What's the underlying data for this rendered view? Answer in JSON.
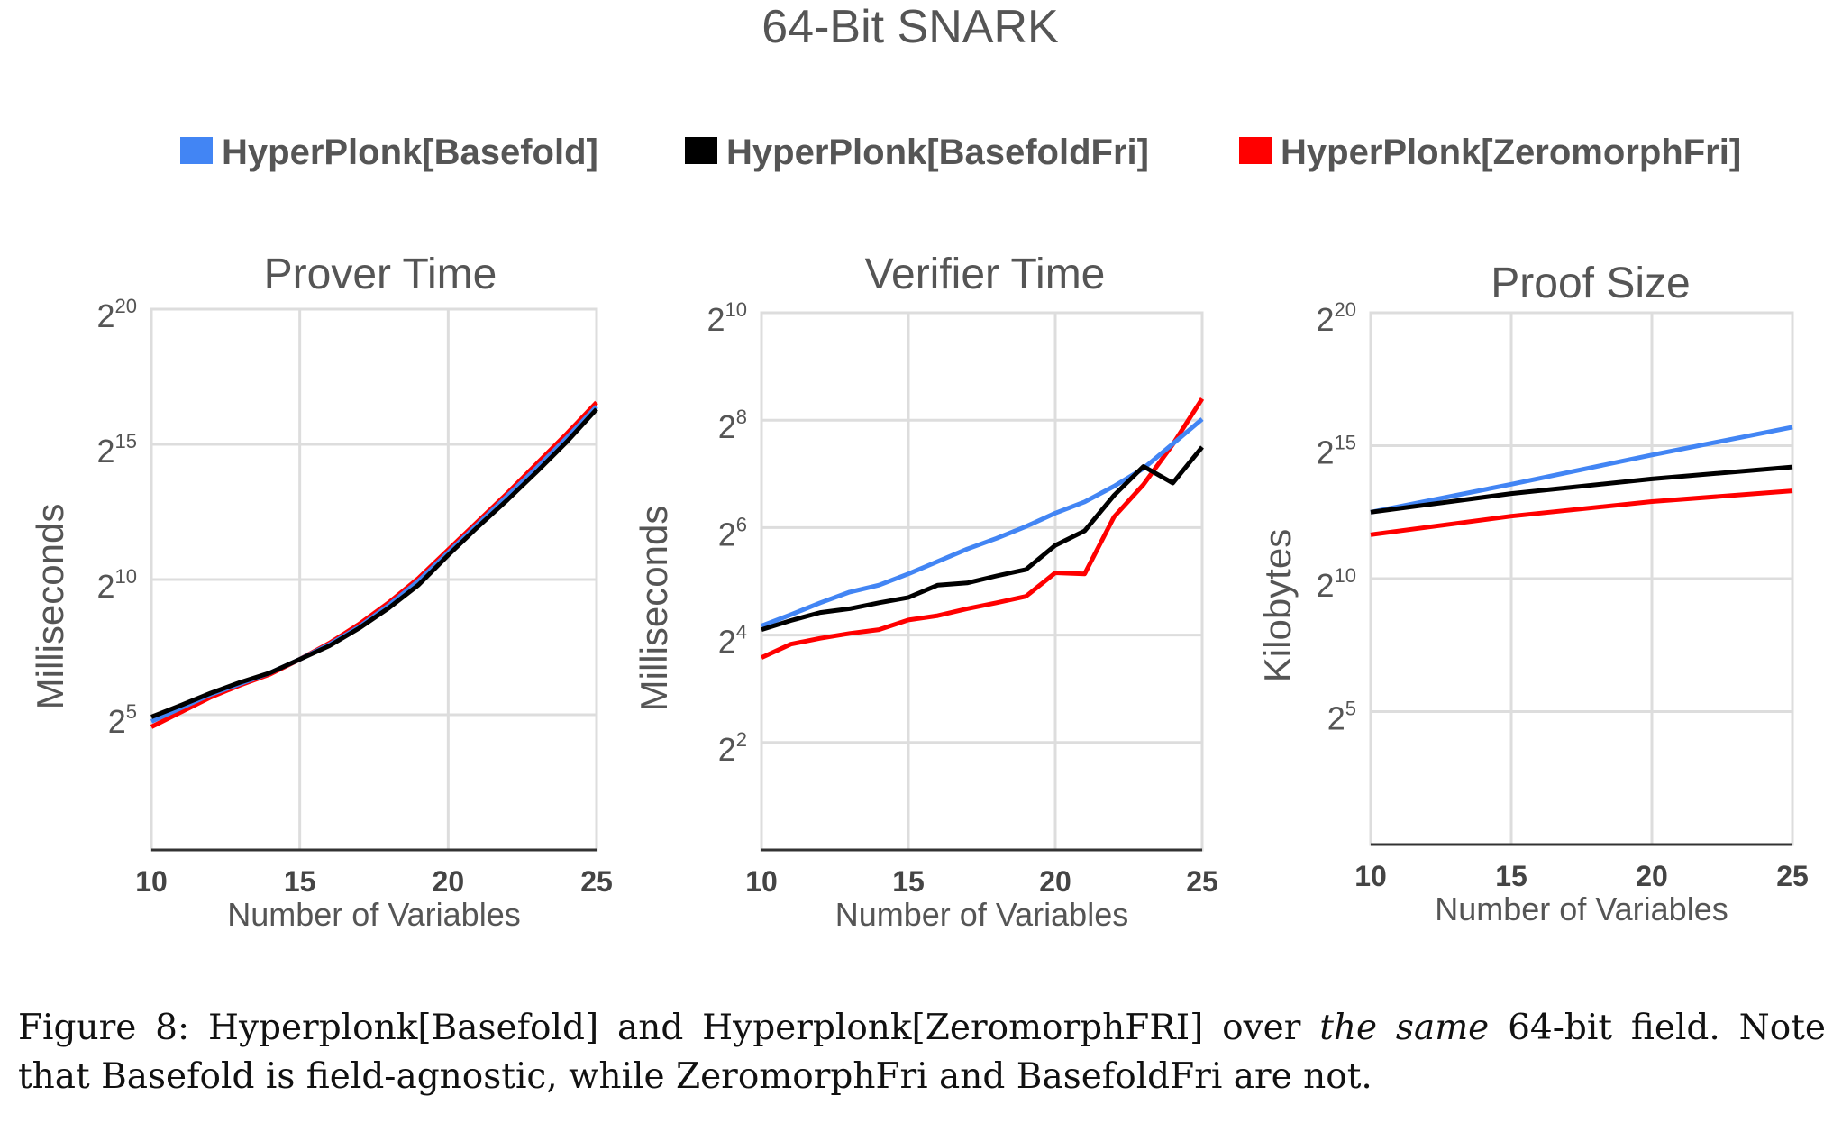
{
  "figure_title": "64-Bit SNARK",
  "legend": [
    {
      "label": "HyperPlonk[Basefold]",
      "color": "#4285f4"
    },
    {
      "label": "HyperPlonk[BasefoldFri]",
      "color": "#000000"
    },
    {
      "label": "HyperPlonk[ZeromorphFri]",
      "color": "#ff0000"
    }
  ],
  "caption": {
    "line1_a": "Figure 8: Hyperplonk[Basefold] and Hyperplonk[ZeromorphFRI] over ",
    "line1_em": "the same",
    "line1_b": " 64-bit field. Note",
    "line2": "that Basefold is field-agnostic, while ZeromorphFri and BasefoldFri are not."
  },
  "chart_data": [
    {
      "type": "line",
      "title": "Prover Time",
      "xlabel": "Number of Variables",
      "ylabel": "Milliseconds",
      "yscale": "log2",
      "xlim": [
        10,
        25
      ],
      "ylim_log2": [
        0,
        20
      ],
      "xticks": [
        "10",
        "15",
        "20",
        "25"
      ],
      "yticks": [
        {
          "base": "2",
          "exp": "5",
          "v": 5
        },
        {
          "base": "2",
          "exp": "10",
          "v": 10
        },
        {
          "base": "2",
          "exp": "15",
          "v": 15
        },
        {
          "base": "2",
          "exp": "20",
          "v": 20
        }
      ],
      "grid": true,
      "x": [
        10,
        11,
        12,
        13,
        14,
        15,
        16,
        17,
        18,
        19,
        20,
        21,
        22,
        23,
        24,
        25
      ],
      "series_log2": [
        {
          "name": "HyperPlonk[Basefold]",
          "values": [
            4.75,
            5.25,
            5.75,
            6.15,
            6.55,
            7.05,
            7.6,
            8.25,
            9.05,
            9.95,
            11.0,
            12.05,
            13.1,
            14.15,
            15.25,
            16.4
          ]
        },
        {
          "name": "HyperPlonk[BasefoldFri]",
          "values": [
            4.92,
            5.35,
            5.8,
            6.2,
            6.55,
            7.05,
            7.55,
            8.2,
            8.95,
            9.8,
            10.9,
            11.95,
            12.95,
            14.0,
            15.1,
            16.3
          ]
        },
        {
          "name": "HyperPlonk[ZeromorphFri]",
          "values": [
            4.55,
            5.1,
            5.65,
            6.1,
            6.5,
            7.05,
            7.65,
            8.35,
            9.15,
            10.05,
            11.1,
            12.15,
            13.2,
            14.3,
            15.4,
            16.55
          ]
        }
      ]
    },
    {
      "type": "line",
      "title": "Verifier Time",
      "xlabel": "Number of Variables",
      "ylabel": "Milliseconds",
      "yscale": "log2",
      "xlim": [
        10,
        25
      ],
      "ylim_log2": [
        0,
        10
      ],
      "xticks": [
        "10",
        "15",
        "20",
        "25"
      ],
      "yticks": [
        {
          "base": "2",
          "exp": "2",
          "v": 2
        },
        {
          "base": "2",
          "exp": "4",
          "v": 4
        },
        {
          "base": "2",
          "exp": "6",
          "v": 6
        },
        {
          "base": "2",
          "exp": "8",
          "v": 8
        },
        {
          "base": "2",
          "exp": "10",
          "v": 10
        }
      ],
      "grid": true,
      "x": [
        10,
        11,
        12,
        13,
        14,
        15,
        16,
        17,
        18,
        19,
        20,
        21,
        22,
        23,
        24,
        25
      ],
      "series_log2": [
        {
          "name": "HyperPlonk[Basefold]",
          "values": [
            4.17,
            4.38,
            4.6,
            4.8,
            4.93,
            5.14,
            5.37,
            5.6,
            5.8,
            6.02,
            6.27,
            6.48,
            6.77,
            7.1,
            7.56,
            8.02
          ]
        },
        {
          "name": "HyperPlonk[BasefoldFri]",
          "values": [
            4.1,
            4.27,
            4.42,
            4.49,
            4.6,
            4.7,
            4.93,
            4.97,
            5.1,
            5.22,
            5.67,
            5.94,
            6.6,
            7.14,
            6.83,
            7.5
          ]
        },
        {
          "name": "HyperPlonk[ZeromorphFri]",
          "values": [
            3.58,
            3.83,
            3.94,
            4.03,
            4.1,
            4.28,
            4.36,
            4.49,
            4.6,
            4.72,
            5.16,
            5.14,
            6.2,
            6.8,
            7.55,
            8.4
          ]
        }
      ]
    },
    {
      "type": "line",
      "title": "Proof Size",
      "xlabel": "Number of Variables",
      "ylabel": "Kilobytes",
      "yscale": "log2",
      "xlim": [
        10,
        25
      ],
      "ylim_log2": [
        0,
        20
      ],
      "xticks": [
        "10",
        "15",
        "20",
        "25"
      ],
      "yticks": [
        {
          "base": "2",
          "exp": "5",
          "v": 5
        },
        {
          "base": "2",
          "exp": "10",
          "v": 10
        },
        {
          "base": "2",
          "exp": "15",
          "v": 15
        },
        {
          "base": "2",
          "exp": "20",
          "v": 20
        }
      ],
      "grid": true,
      "x": [
        10,
        15,
        20,
        25
      ],
      "series_log2": [
        {
          "name": "HyperPlonk[Basefold]",
          "values": [
            12.5,
            13.55,
            14.65,
            15.7
          ]
        },
        {
          "name": "HyperPlonk[BasefoldFri]",
          "values": [
            12.5,
            13.2,
            13.75,
            14.2
          ]
        },
        {
          "name": "HyperPlonk[ZeromorphFri]",
          "values": [
            11.65,
            12.35,
            12.9,
            13.3
          ]
        }
      ]
    }
  ]
}
